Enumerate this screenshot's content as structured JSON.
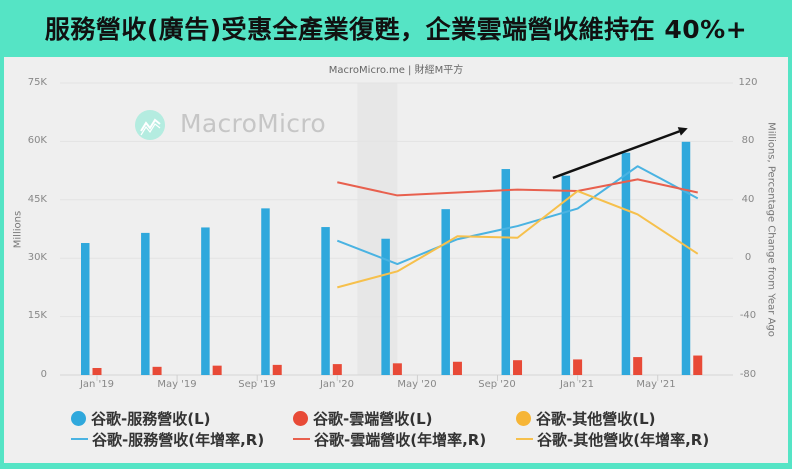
{
  "header": {
    "title": "服務營收(廣告)受惠全產業復甦，企業雲端營收維持在 40%+"
  },
  "chart": {
    "source": "MacroMicro.me | 財經M平方",
    "watermark": "MacroMicro",
    "watermark_color": "#b4ece0"
  },
  "chart_data": {
    "type": "bar",
    "combo": "bar + line (dual axis)",
    "title": "服務營收(廣告)受惠全產業復甦，企業雲端營收維持在 40%+",
    "subtitle": "MacroMicro.me | 財經M平方",
    "xlabel": "",
    "ylabel": "Millions",
    "ylabel_right": "Millions, Percentage Change from Year Ago",
    "ylim": [
      0,
      75000
    ],
    "ylim_right": [
      -80,
      120
    ],
    "yticks_left": [
      "75K",
      "60K",
      "45K",
      "30K",
      "15K",
      "0"
    ],
    "yticks_right": [
      "120",
      "80",
      "40",
      "0",
      "-40",
      "-80"
    ],
    "x_tick_labels": [
      "Jan '19",
      "May '19",
      "Sep '19",
      "Jan '20",
      "May '20",
      "Sep '20",
      "Jan '21",
      "May '21"
    ],
    "x": [
      "2019-01-01",
      "2019-04-01",
      "2019-07-01",
      "2019-10-01",
      "2020-01-01",
      "2020-04-01",
      "2020-07-01",
      "2020-10-01",
      "2021-01-01",
      "2021-04-01",
      "2021-07-01"
    ],
    "grid": true,
    "legend_position": "bottom",
    "series": [
      {
        "name": "谷歌-服務營收(L)",
        "kind": "bar",
        "axis": "left",
        "color": "#2fa8dc",
        "values": [
          33900,
          36500,
          37900,
          42800,
          38000,
          35000,
          42600,
          52900,
          51200,
          57100,
          59900
        ]
      },
      {
        "name": "谷歌-雲端營收(L)",
        "kind": "bar",
        "axis": "left",
        "color": "#e84a37",
        "values": [
          1800,
          2100,
          2400,
          2600,
          2800,
          3000,
          3400,
          3800,
          4000,
          4600,
          5000
        ]
      },
      {
        "name": "谷歌-其他營收(L)",
        "kind": "bar",
        "axis": "left",
        "color": "#f6b536",
        "values": [
          null,
          null,
          null,
          null,
          null,
          null,
          null,
          null,
          null,
          null,
          null
        ]
      },
      {
        "name": "谷歌-服務營收(年增率,R)",
        "kind": "line",
        "axis": "right",
        "color": "#4ab3e2",
        "values": [
          null,
          null,
          null,
          null,
          12,
          -4,
          13,
          22,
          34,
          63,
          41
        ]
      },
      {
        "name": "谷歌-雲端營收(年增率,R)",
        "kind": "line",
        "axis": "right",
        "color": "#e8604e",
        "values": [
          null,
          null,
          null,
          null,
          52,
          43,
          45,
          47,
          46,
          54,
          45
        ]
      },
      {
        "name": "谷歌-其他營收(年增率,R)",
        "kind": "line",
        "axis": "right",
        "color": "#f6c04c",
        "values": [
          null,
          null,
          null,
          null,
          -20,
          -9,
          15,
          14,
          46,
          30,
          3
        ]
      }
    ],
    "annotations": [
      {
        "type": "shaded-band",
        "from": "2020-02-01",
        "to": "2020-04-01",
        "color": "#e7e7e7"
      },
      {
        "type": "arrow",
        "color": "#111111",
        "from": {
          "x": "2020-11-24",
          "y_right": 55
        },
        "to": {
          "x": "2021-06-16",
          "y_right": 89
        }
      }
    ]
  }
}
